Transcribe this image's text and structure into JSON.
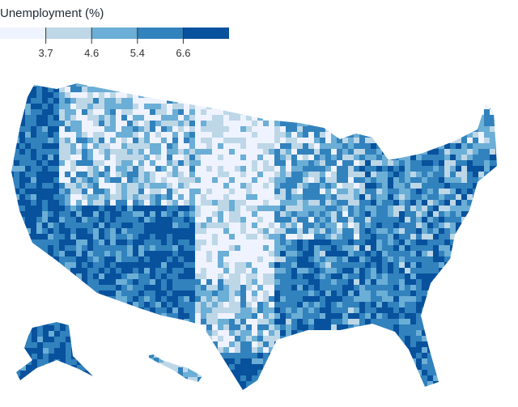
{
  "legend": {
    "title": "Unemployment (%)",
    "thresholds": [
      "3.7",
      "4.6",
      "5.4",
      "6.6"
    ],
    "colors": [
      "#eff3ff",
      "#bdd7e7",
      "#6baed6",
      "#3182bd",
      "#08519c"
    ]
  },
  "map": {
    "type": "choropleth",
    "geography": "US counties",
    "scale": "quantile"
  }
}
